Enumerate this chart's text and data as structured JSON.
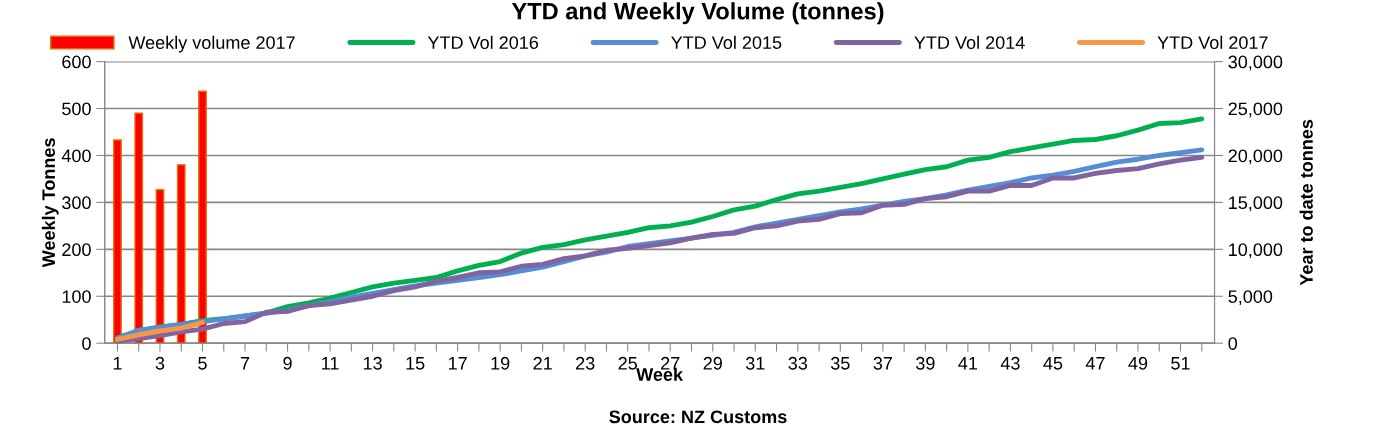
{
  "chart_data": {
    "type": "bar",
    "title": "YTD and Weekly Volume (tonnes)",
    "xlabel": "Week",
    "ylabel": "Weekly Tonnes",
    "y2label": "Year to date tonnes",
    "annotations": [
      "Source: NZ Customs"
    ],
    "categories": [
      "1",
      null,
      "3",
      null,
      "5",
      null,
      "7",
      null,
      "9",
      null,
      "11",
      null,
      "13",
      null,
      "15",
      null,
      "17",
      null,
      "19",
      null,
      "21",
      null,
      "23",
      null,
      "25",
      null,
      "27",
      null,
      "29",
      null,
      "31",
      null,
      "33",
      null,
      "35",
      null,
      "37",
      null,
      "39",
      null,
      "41",
      null,
      "43",
      null,
      "45",
      null,
      "47",
      null,
      "49",
      null,
      "51",
      null
    ],
    "series": [
      {
        "name": "Weekly volume 2017",
        "color": "#ff0000",
        "values": [
          433,
          490,
          327,
          380,
          537,
          null,
          null,
          null,
          null,
          null,
          null,
          null,
          null,
          null,
          null,
          null,
          null,
          null,
          null,
          null,
          null,
          null,
          null,
          null,
          null,
          null,
          null,
          null,
          null,
          null,
          null,
          null,
          null,
          null,
          null,
          null,
          null,
          null,
          null,
          null,
          null,
          null,
          null,
          null,
          null,
          null,
          null,
          null,
          null,
          null,
          null,
          null
        ]
      },
      {
        "name": "YTD Vol 2016",
        "type": "line",
        "axis": "y2",
        "color": "#00b050",
        "values": [
          600,
          1300,
          1700,
          2000,
          2400,
          2600,
          2900,
          3200,
          3900,
          4300,
          4800,
          5400,
          6000,
          6400,
          6700,
          7000,
          7700,
          8300,
          8700,
          9600,
          10200,
          10500,
          11000,
          11400,
          11800,
          12300,
          12500,
          12900,
          13500,
          14200,
          14600,
          15300,
          15900,
          16200,
          16600,
          17000,
          17500,
          18000,
          18500,
          18800,
          19500,
          19800,
          20400,
          20800,
          21200,
          21600,
          21700,
          22100,
          22700,
          23400,
          23500,
          23900
        ]
      },
      {
        "name": "YTD Vol 2015",
        "type": "line",
        "axis": "y2",
        "color": "#558ed5",
        "values": [
          500,
          1400,
          1700,
          2000,
          2300,
          2600,
          2900,
          3200,
          3500,
          4000,
          4400,
          4900,
          5300,
          5700,
          6100,
          6400,
          6700,
          7000,
          7300,
          7700,
          8100,
          8700,
          9300,
          9700,
          10300,
          10600,
          10900,
          11200,
          11500,
          11800,
          12400,
          12800,
          13200,
          13600,
          14000,
          14300,
          14700,
          15100,
          15400,
          15800,
          16300,
          16700,
          17100,
          17600,
          17900,
          18300,
          18800,
          19300,
          19600,
          20000,
          20300,
          20600
        ]
      },
      {
        "name": "YTD Vol 2014",
        "type": "line",
        "axis": "y2",
        "color": "#8064a2",
        "values": [
          200,
          500,
          800,
          1200,
          1500,
          2100,
          2300,
          3300,
          3400,
          4000,
          4200,
          4600,
          5000,
          5600,
          6000,
          6600,
          7000,
          7500,
          7600,
          8200,
          8400,
          9000,
          9300,
          9900,
          10100,
          10400,
          10700,
          11200,
          11600,
          11700,
          12300,
          12500,
          13000,
          13200,
          13800,
          13900,
          14700,
          14800,
          15400,
          15600,
          16200,
          16200,
          16800,
          16800,
          17600,
          17600,
          18100,
          18400,
          18600,
          19100,
          19500,
          19800
        ]
      },
      {
        "name": "YTD Vol 2017",
        "type": "line",
        "axis": "y2",
        "color": "#f79646",
        "values": [
          400,
          900,
          1300,
          1600,
          2200,
          null,
          null,
          null,
          null,
          null,
          null,
          null,
          null,
          null,
          null,
          null,
          null,
          null,
          null,
          null,
          null,
          null,
          null,
          null,
          null,
          null,
          null,
          null,
          null,
          null,
          null,
          null,
          null,
          null,
          null,
          null,
          null,
          null,
          null,
          null,
          null,
          null,
          null,
          null,
          null,
          null,
          null,
          null,
          null,
          null,
          null,
          null
        ]
      }
    ],
    "ylim": [
      0,
      600
    ],
    "yticks": [
      0,
      100,
      200,
      300,
      400,
      500,
      600
    ],
    "y2lim": [
      0,
      30000
    ],
    "y2ticks": [
      0,
      {
        "value": 5000,
        "label": "5,000"
      },
      {
        "value": 10000,
        "label": "10,000"
      },
      {
        "value": 15000,
        "label": "15,000"
      },
      {
        "value": 20000,
        "label": "20,000"
      },
      {
        "value": 25000,
        "label": "25,000"
      },
      {
        "value": 30000,
        "label": "30,000"
      }
    ],
    "grid": "y",
    "legend": "top"
  }
}
